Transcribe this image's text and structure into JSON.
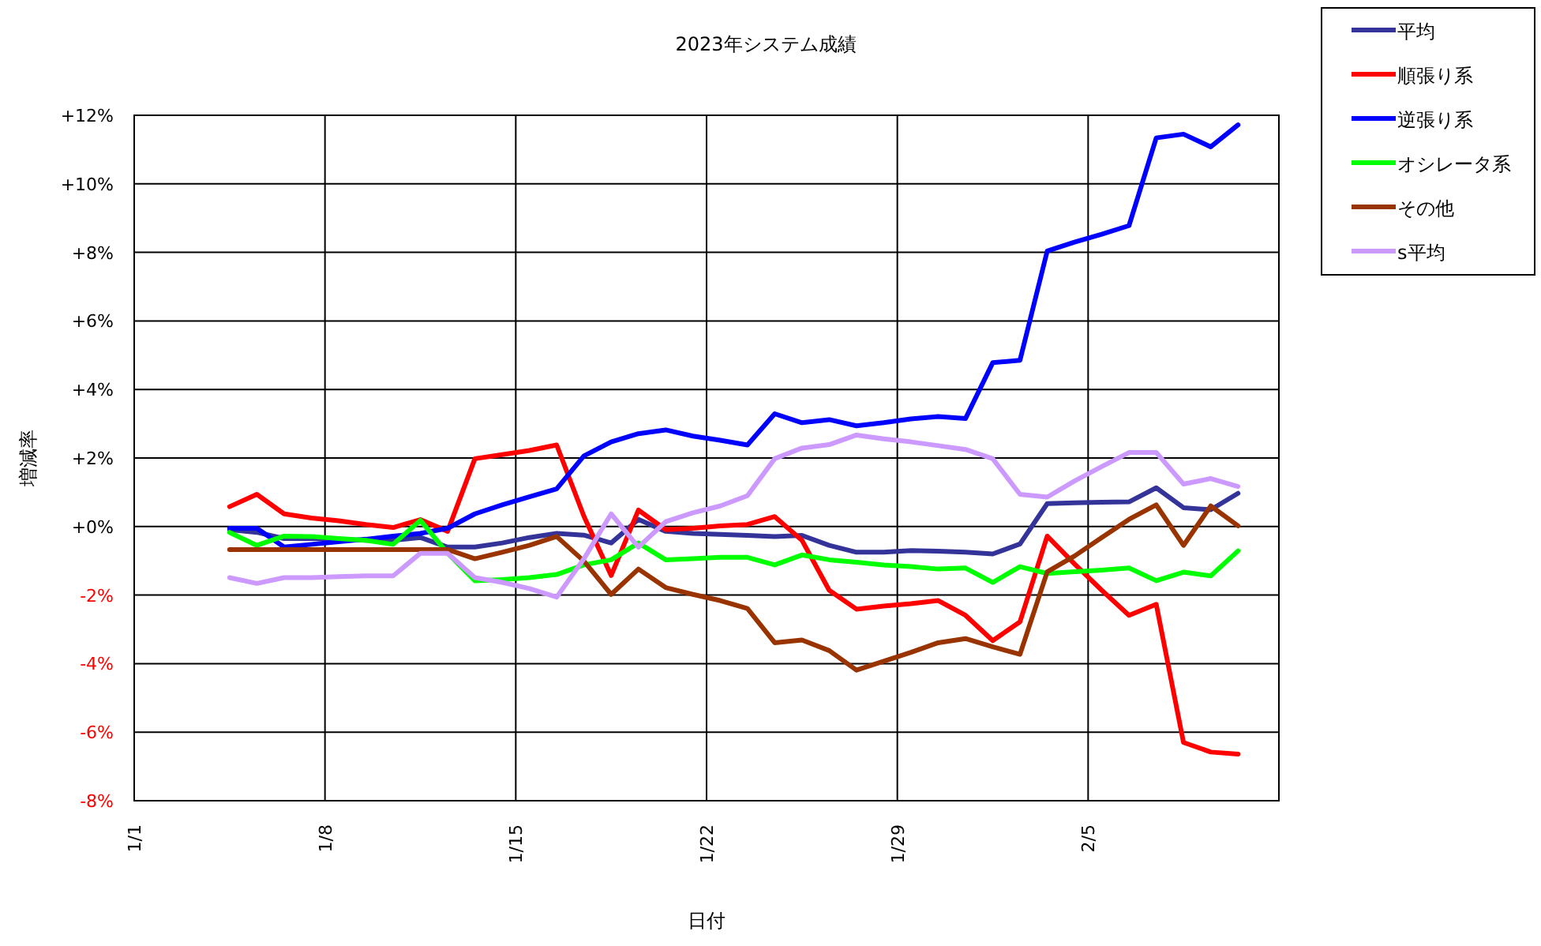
{
  "chart_data": {
    "type": "line",
    "title": "2023年システム成績",
    "xlabel": "日付",
    "ylabel": "増減率",
    "x": [
      "2023-01-04T12:00",
      "2023-01-05T12:00",
      "2023-01-06T12:00",
      "2023-01-07T12:00",
      "2023-01-08T12:00",
      "2023-01-09T12:00",
      "2023-01-10T12:00",
      "2023-01-11T12:00",
      "2023-01-12T12:00",
      "2023-01-13T12:00",
      "2023-01-14T12:00",
      "2023-01-15T12:00",
      "2023-01-16T12:00",
      "2023-01-17T12:00",
      "2023-01-18T12:00",
      "2023-01-19T12:00",
      "2023-01-20T12:00",
      "2023-01-21T12:00",
      "2023-01-22T12:00",
      "2023-01-23T12:00",
      "2023-01-24T12:00",
      "2023-01-25T12:00",
      "2023-01-26T12:00",
      "2023-01-27T12:00",
      "2023-01-28T12:00",
      "2023-01-29T12:00",
      "2023-01-30T12:00",
      "2023-01-31T12:00",
      "2023-02-01T12:00",
      "2023-02-02T12:00",
      "2023-02-03T12:00",
      "2023-02-04T12:00",
      "2023-02-05T12:00",
      "2023-02-06T12:00",
      "2023-02-07T12:00",
      "2023-02-08T12:00",
      "2023-02-09T12:00",
      "2023-02-10T12:00"
    ],
    "series": [
      {
        "name": "平均",
        "color": "#333399",
        "values": [
          -0.09,
          -0.17,
          -0.35,
          -0.35,
          -0.37,
          -0.4,
          -0.4,
          -0.32,
          -0.6,
          -0.6,
          -0.48,
          -0.32,
          -0.2,
          -0.25,
          -0.48,
          0.21,
          -0.14,
          -0.2,
          -0.23,
          -0.26,
          -0.29,
          -0.26,
          -0.55,
          -0.75,
          -0.75,
          -0.7,
          -0.72,
          -0.75,
          -0.8,
          -0.51,
          0.67,
          0.69,
          0.71,
          0.72,
          1.13,
          0.55,
          0.49,
          0.97
        ]
      },
      {
        "name": "順張り系",
        "color": "#ff0000",
        "values": [
          0.58,
          0.94,
          0.37,
          0.25,
          0.17,
          0.06,
          -0.03,
          0.2,
          -0.14,
          1.98,
          2.1,
          2.22,
          2.38,
          0.3,
          -1.43,
          0.48,
          -0.09,
          -0.05,
          0.02,
          0.06,
          0.29,
          -0.4,
          -1.86,
          -2.41,
          -2.32,
          -2.25,
          -2.16,
          -2.59,
          -3.33,
          -2.78,
          -0.28,
          -1.09,
          -1.86,
          -2.59,
          -2.27,
          -6.3,
          -6.58,
          -6.64
        ]
      },
      {
        "name": "逆張り系",
        "color": "#0000ff",
        "values": [
          -0.05,
          -0.05,
          -0.6,
          -0.52,
          -0.44,
          -0.37,
          -0.28,
          -0.2,
          -0.05,
          0.37,
          0.63,
          0.87,
          1.1,
          2.06,
          2.47,
          2.71,
          2.82,
          2.64,
          2.52,
          2.38,
          3.29,
          3.03,
          3.12,
          2.94,
          3.03,
          3.14,
          3.21,
          3.15,
          4.78,
          4.85,
          8.04,
          8.3,
          8.53,
          8.78,
          11.34,
          11.45,
          11.08,
          11.72
        ]
      },
      {
        "name": "オシレータ系",
        "color": "#00ff00",
        "values": [
          -0.17,
          -0.55,
          -0.28,
          -0.29,
          -0.35,
          -0.4,
          -0.52,
          0.18,
          -0.78,
          -1.58,
          -1.55,
          -1.49,
          -1.4,
          -1.12,
          -0.97,
          -0.48,
          -0.97,
          -0.94,
          -0.9,
          -0.9,
          -1.12,
          -0.83,
          -0.97,
          -1.04,
          -1.12,
          -1.17,
          -1.24,
          -1.21,
          -1.63,
          -1.17,
          -1.37,
          -1.32,
          -1.27,
          -1.21,
          -1.58,
          -1.33,
          -1.44,
          -0.71
        ]
      },
      {
        "name": "その他",
        "color": "#993300",
        "values": [
          -0.67,
          -0.67,
          -0.67,
          -0.67,
          -0.67,
          -0.67,
          -0.67,
          -0.67,
          -0.67,
          -0.94,
          -0.75,
          -0.55,
          -0.29,
          -1.01,
          -1.98,
          -1.24,
          -1.78,
          -1.98,
          -2.16,
          -2.39,
          -3.39,
          -3.31,
          -3.62,
          -4.19,
          -3.93,
          -3.67,
          -3.39,
          -3.27,
          -3.51,
          -3.73,
          -1.32,
          -0.86,
          -0.32,
          0.21,
          0.63,
          -0.55,
          0.6,
          0.02
        ]
      },
      {
        "name": "s平均",
        "color": "#cc99ff",
        "values": [
          -1.49,
          -1.66,
          -1.49,
          -1.49,
          -1.46,
          -1.44,
          -1.44,
          -0.78,
          -0.78,
          -1.49,
          -1.63,
          -1.81,
          -2.06,
          -0.94,
          0.37,
          -0.6,
          0.14,
          0.4,
          0.6,
          0.9,
          1.98,
          2.29,
          2.39,
          2.67,
          2.56,
          2.47,
          2.36,
          2.25,
          1.98,
          0.94,
          0.86,
          1.33,
          1.75,
          2.16,
          2.16,
          1.24,
          1.4,
          1.17
        ]
      }
    ],
    "xlim": [
      "2023-01-01",
      "2023-02-12"
    ],
    "xticks": [
      {
        "value": "2023-01-01",
        "label": "1/1"
      },
      {
        "value": "2023-01-08",
        "label": "1/8"
      },
      {
        "value": "2023-01-15",
        "label": "1/15"
      },
      {
        "value": "2023-01-22",
        "label": "1/22"
      },
      {
        "value": "2023-01-29",
        "label": "1/29"
      },
      {
        "value": "2023-02-05",
        "label": "2/5"
      }
    ],
    "ylim": [
      -8,
      12
    ],
    "yticks": [
      {
        "value": -8,
        "label": "-8%"
      },
      {
        "value": -6,
        "label": "-6%"
      },
      {
        "value": -4,
        "label": "-4%"
      },
      {
        "value": -2,
        "label": "-2%"
      },
      {
        "value": 0,
        "label": "+0%"
      },
      {
        "value": 2,
        "label": "+2%"
      },
      {
        "value": 4,
        "label": "+4%"
      },
      {
        "value": 6,
        "label": "+6%"
      },
      {
        "value": 8,
        "label": "+8%"
      },
      {
        "value": 10,
        "label": "+10%"
      },
      {
        "value": 12,
        "label": "+12%"
      }
    ],
    "grid": true,
    "legend": "top right",
    "marker": "none",
    "line_style": "solid"
  }
}
